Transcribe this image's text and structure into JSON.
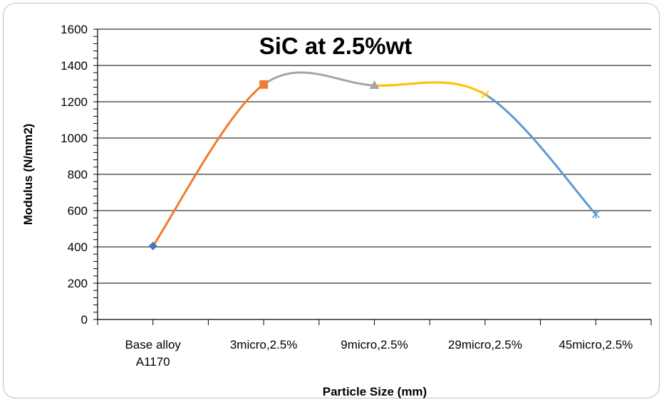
{
  "chart_data": {
    "type": "line",
    "title": "SiC at 2.5%wt",
    "xlabel": "Particle Size (mm)",
    "ylabel": "Modulus (N/mm2)",
    "categories": [
      "Base alloy A1170",
      "3micro,2.5%",
      "9micro,2.5%",
      "29micro,2.5%",
      "45micro,2.5%"
    ],
    "category_lines": [
      [
        "Base alloy",
        "A1170"
      ],
      [
        "3micro,2.5%"
      ],
      [
        "9micro,2.5%"
      ],
      [
        "29micro,2.5%"
      ],
      [
        "45micro,2.5%"
      ]
    ],
    "values": [
      405,
      1295,
      1290,
      1240,
      580
    ],
    "ylim": [
      0,
      1600
    ],
    "yticks": [
      0,
      200,
      400,
      600,
      800,
      1000,
      1200,
      1400,
      1600
    ],
    "grid": true,
    "smooth": true,
    "points": [
      {
        "marker": "diamond",
        "color": "#4472C4"
      },
      {
        "marker": "square",
        "color": "#ED7D31"
      },
      {
        "marker": "triangle",
        "color": "#A5A5A5"
      },
      {
        "marker": "x",
        "color": "#FFC000"
      },
      {
        "marker": "star",
        "color": "#5B9BD5"
      }
    ],
    "segments": [
      {
        "color": "#ED7D31"
      },
      {
        "color": "#A5A5A5"
      },
      {
        "color": "#FFC000"
      },
      {
        "color": "#5B9BD5"
      }
    ]
  }
}
